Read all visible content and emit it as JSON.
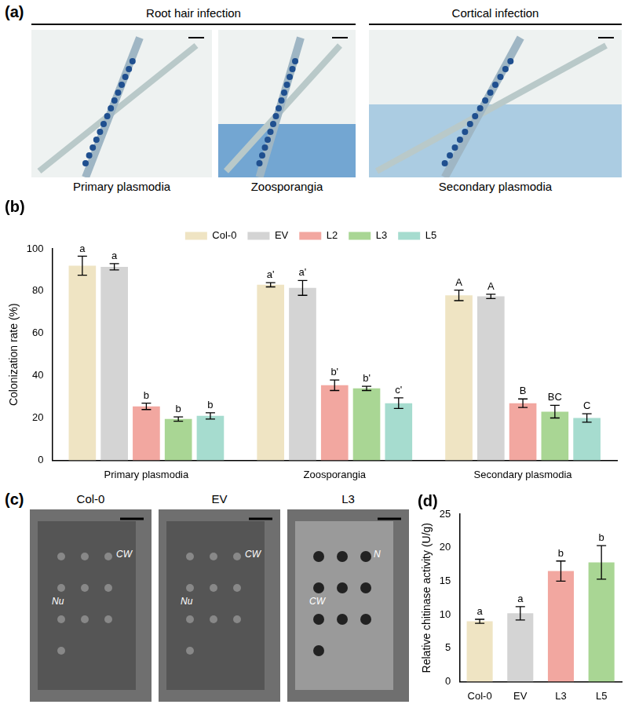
{
  "panels": {
    "a": {
      "label": "(a)",
      "groups": [
        "Root hair infection",
        "Cortical infection"
      ],
      "images": [
        "Primary plasmodia",
        "Zoosporangia",
        "Secondary plasmodia"
      ]
    },
    "c": {
      "label": "(c)",
      "images": [
        {
          "title": "Col-0",
          "marks": [
            "Nu",
            "CW"
          ]
        },
        {
          "title": "EV",
          "marks": [
            "Nu",
            "CW"
          ]
        },
        {
          "title": "L3",
          "marks": [
            "CW",
            "N"
          ]
        }
      ]
    }
  },
  "chart_data": [
    {
      "type": "bar",
      "title": "(b)",
      "categories": [
        "Primary plasmodia",
        "Zoosporangia",
        "Secondary plasmodia"
      ],
      "series": [
        {
          "name": "Col-0",
          "color": "#efe4c3",
          "values": [
            92,
            83,
            78
          ],
          "error": [
            4.5,
            1,
            2.5
          ],
          "annotations": [
            "a",
            "a'",
            "A"
          ]
        },
        {
          "name": "EV",
          "color": "#d4d4d4",
          "values": [
            91.5,
            81.5,
            77.5
          ],
          "error": [
            1.5,
            3.5,
            1
          ],
          "annotations": [
            "a",
            "a'",
            "A"
          ]
        },
        {
          "name": "L2",
          "color": "#f2a7a0",
          "values": [
            25.5,
            35.5,
            27
          ],
          "error": [
            1.5,
            2.5,
            2
          ],
          "annotations": [
            "b",
            "b'",
            "B"
          ]
        },
        {
          "name": "L3",
          "color": "#a9d694",
          "values": [
            19.5,
            34,
            23
          ],
          "error": [
            1,
            1,
            3
          ],
          "annotations": [
            "b",
            "b'",
            "BC"
          ]
        },
        {
          "name": "L5",
          "color": "#a6dccf",
          "values": [
            21,
            27,
            20
          ],
          "error": [
            1.5,
            2.5,
            2
          ],
          "annotations": [
            "b",
            "c'",
            "C"
          ]
        }
      ],
      "y_label": "Colonization rate (%)",
      "ylim": [
        0,
        100
      ],
      "yticks": [
        0,
        20,
        40,
        60,
        80,
        100
      ],
      "legend": "top",
      "grid": false
    },
    {
      "type": "bar",
      "title": "(d)",
      "categories": [
        "Col-0",
        "EV",
        "L3",
        "L5"
      ],
      "values": [
        9,
        10.2,
        16.5,
        17.8
      ],
      "error": [
        0.3,
        1,
        1.5,
        2.5
      ],
      "annotations": [
        "a",
        "a",
        "b",
        "b"
      ],
      "colors": [
        "#efe4c3",
        "#d4d4d4",
        "#f2a7a0",
        "#a9d694"
      ],
      "y_label": "Relative chitinase activity (U/g)",
      "ylim": [
        0,
        25
      ],
      "yticks": [
        0,
        5,
        10,
        15,
        20,
        25
      ],
      "grid": false
    }
  ]
}
